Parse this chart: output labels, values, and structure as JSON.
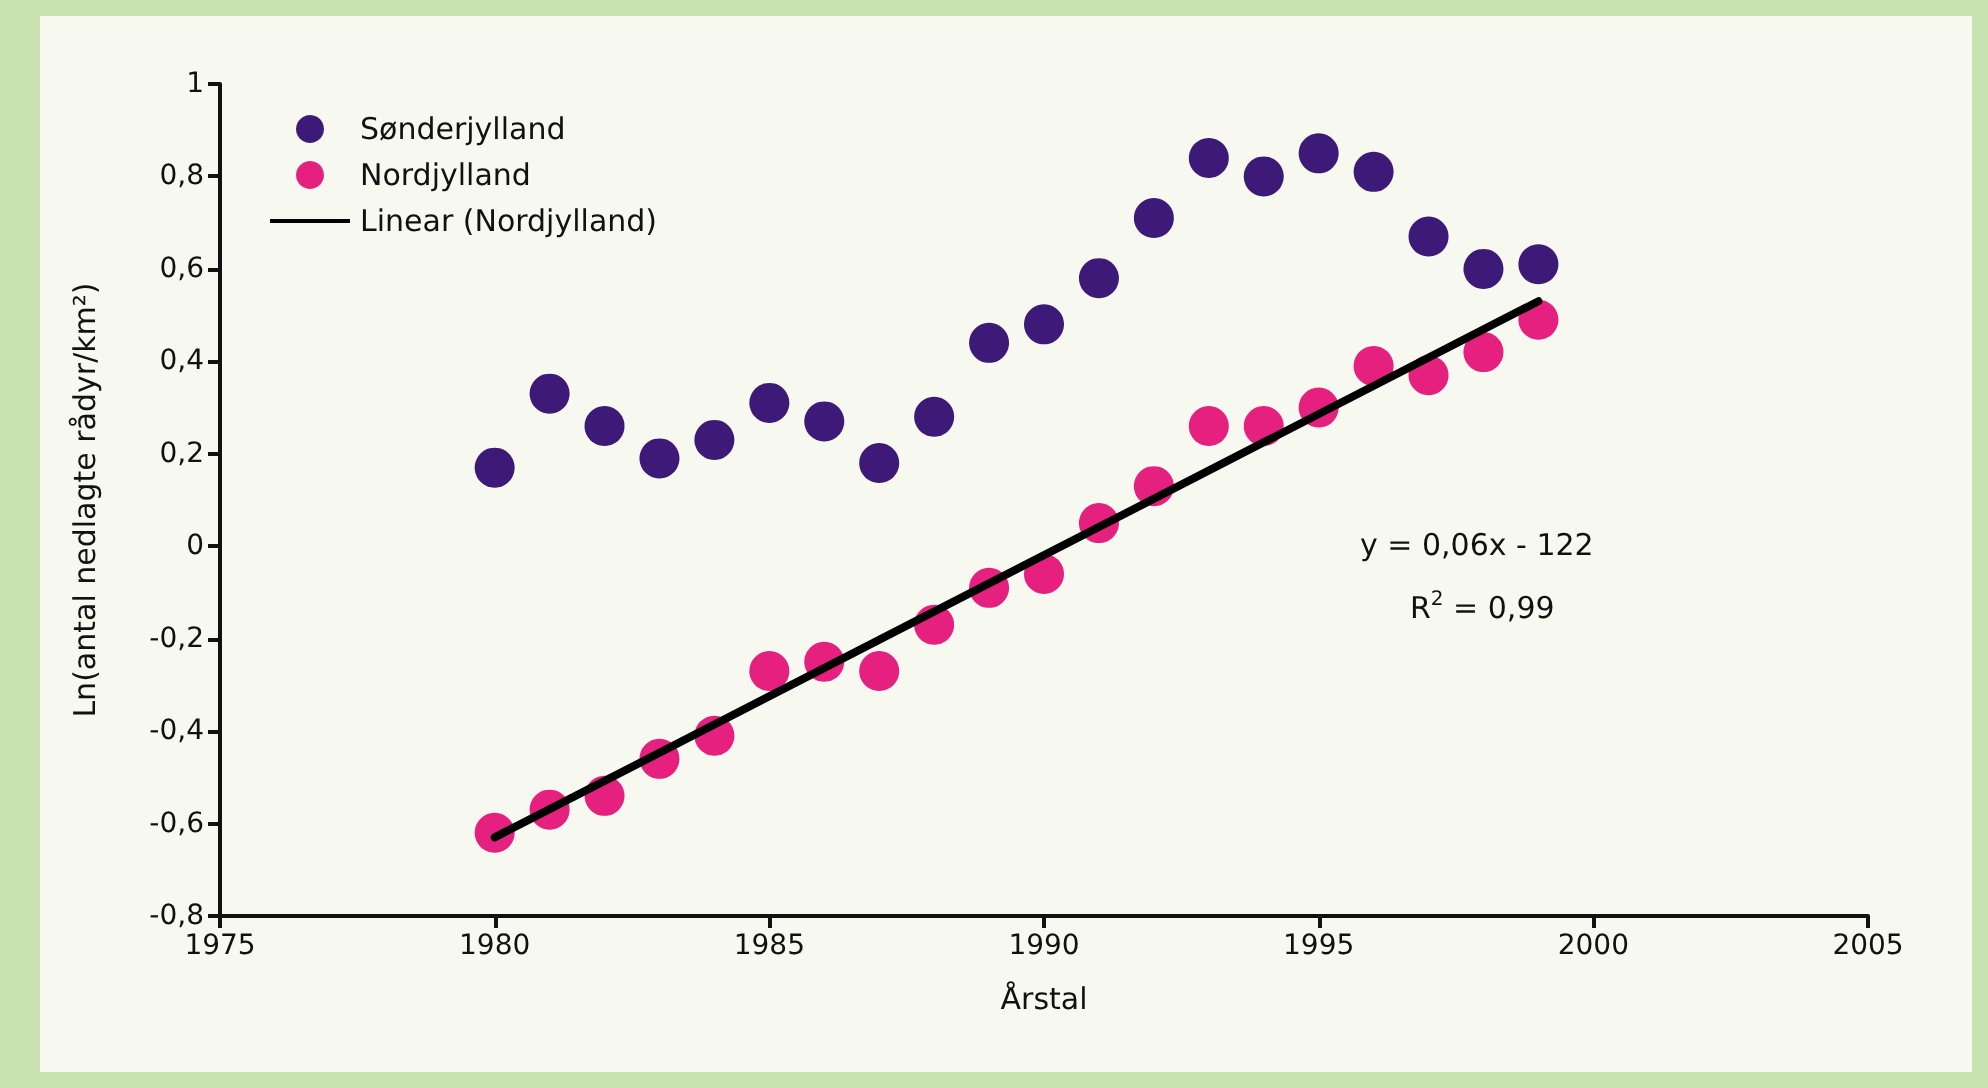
{
  "chart_data": {
    "type": "scatter",
    "xlabel": "Årstal",
    "ylabel": "Ln(antal nedlagte rådyr/km²)",
    "xlim": [
      1975,
      2005
    ],
    "xticks": [
      1975,
      1980,
      1985,
      1990,
      1995,
      2000,
      2005
    ],
    "ylim": [
      -0.8,
      1
    ],
    "yticks": [
      {
        "value": -0.8,
        "label": "-0,8"
      },
      {
        "value": -0.6,
        "label": "-0,6"
      },
      {
        "value": -0.4,
        "label": "-0,4"
      },
      {
        "value": -0.2,
        "label": "-0,2"
      },
      0,
      {
        "value": 0.2,
        "label": "0,2"
      },
      {
        "value": 0.4,
        "label": "0,4"
      },
      {
        "value": 0.6,
        "label": "0,6"
      },
      {
        "value": 0.8,
        "label": "0,8"
      },
      1
    ],
    "x": [
      1980,
      1981,
      1982,
      1983,
      1984,
      1985,
      1986,
      1987,
      1988,
      1989,
      1990,
      1991,
      1992,
      1993,
      1994,
      1995,
      1996,
      1997,
      1998,
      1999
    ],
    "series": [
      {
        "name": "Sønderjylland",
        "color": "#3d1a78",
        "values": [
          0.17,
          0.33,
          0.26,
          0.19,
          0.23,
          0.31,
          0.27,
          0.18,
          0.28,
          0.44,
          0.48,
          0.58,
          0.71,
          0.84,
          0.8,
          0.85,
          0.81,
          0.67,
          0.6,
          0.61
        ]
      },
      {
        "name": "Nordjylland",
        "color": "#e5207f",
        "values": [
          -0.62,
          -0.57,
          -0.54,
          -0.46,
          -0.41,
          -0.27,
          -0.25,
          -0.27,
          -0.17,
          -0.09,
          -0.06,
          0.05,
          0.13,
          0.26,
          0.26,
          0.3,
          0.39,
          0.37,
          0.42,
          0.49
        ]
      },
      {
        "name": "Linear (Nordjylland)",
        "type": "line",
        "color": "#000000",
        "x": [
          1980,
          1999
        ],
        "values": [
          -0.63,
          0.53
        ],
        "marker": "none",
        "line_style": "solid"
      }
    ],
    "annotations": [
      "y = 0,06x - 122",
      "R$^{2}$ = 0,99"
    ],
    "marker": "circle",
    "legend": "top left",
    "grid": false
  }
}
